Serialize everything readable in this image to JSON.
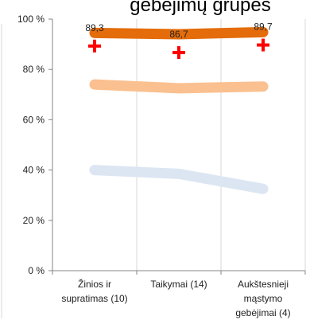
{
  "chart_data": {
    "type": "line",
    "title": "gebėjimų grupės",
    "categories": [
      [
        "Žinios ir",
        "supratimas (10)"
      ],
      [
        "Taikymai (14)"
      ],
      [
        "Aukštesnieji",
        "mąstymo",
        "gebėjimai (4)"
      ]
    ],
    "ylim": [
      0,
      100
    ],
    "yticks": [
      0,
      20,
      40,
      60,
      80,
      100
    ],
    "ytick_labels": [
      "0 %",
      "20 %",
      "40 %",
      "60 %",
      "80 %",
      "100 %"
    ],
    "grid": "vertical-lines",
    "series": [
      {
        "values": [
          94.5,
          94.0,
          94.8
        ],
        "color": "#E46C0A",
        "style": "thick-line"
      },
      {
        "values": [
          74.0,
          72.5,
          73.2
        ],
        "color": "#FAC090",
        "style": "thick-line"
      },
      {
        "values": [
          40.0,
          38.5,
          32.5
        ],
        "color": "#DCE6F2",
        "style": "thick-line"
      },
      {
        "values": [
          89.3,
          86.7,
          89.7
        ],
        "color": "#FF0000",
        "style": "cross-marker",
        "labels": [
          "89,3",
          "86,7",
          "89,7"
        ]
      }
    ]
  }
}
